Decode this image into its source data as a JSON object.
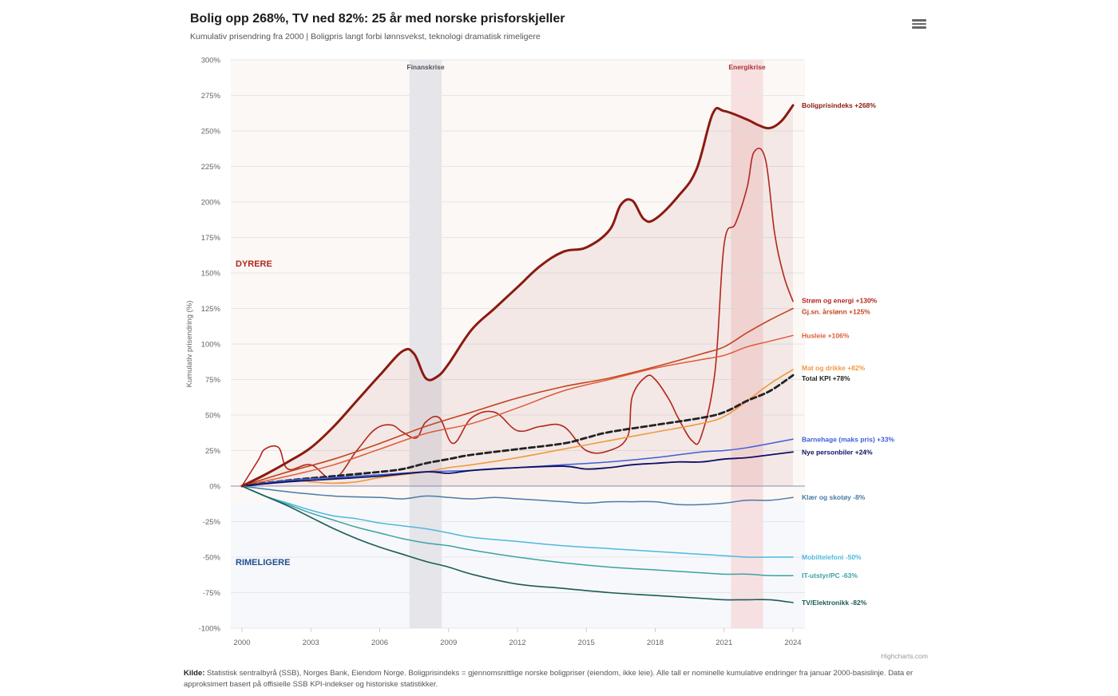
{
  "header": {
    "title": "Bolig opp 268%, TV ned 82%: 25 år med norske prisforskjeller",
    "subtitle": "Kumulativ prisendring fra 2000 | Boligpris langt forbi lønnsvekst, teknologi dramatisk rimeligere",
    "menu_icon": "hamburger-menu-icon"
  },
  "credits": "Highcharts.com",
  "source": {
    "label": "Kilde:",
    "text": "Statistisk sentralbyrå (SSB), Norges Bank, Eiendom Norge. Boligprisindeks = gjennomsnittlige norske boligpriser (eiendom, ikke leie). Alle tall er nominelle kumulative endringer fra januar 2000-basislinje. Data er approksimert basert på offisielle SSB KPI-indekser og historiske statistikker."
  },
  "chart_data": {
    "type": "line",
    "title": "Bolig opp 268%, TV ned 82%: 25 år med norske prisforskjeller",
    "ylabel": "Kumulativ prisendring (%)",
    "xlabel": "",
    "xlim": [
      2000,
      2024
    ],
    "ylim": [
      -100,
      300
    ],
    "xticks": [
      "2000",
      "2003",
      "2006",
      "2009",
      "2012",
      "2015",
      "2018",
      "2021",
      "2024"
    ],
    "yticks": [
      "300%",
      "275%",
      "250%",
      "225%",
      "200%",
      "175%",
      "150%",
      "125%",
      "100%",
      "75%",
      "50%",
      "25%",
      "0%",
      "-25%",
      "-50%",
      "-75%",
      "-100%"
    ],
    "grid": true,
    "legend": "none",
    "zones": [
      {
        "label": "DYRERE",
        "from": -11,
        "to": 300,
        "color": "#fbf8f6",
        "label_color": "#b0281a"
      },
      {
        "label": "RIMELIGERE",
        "from": -100,
        "to": -11,
        "color": "#f7f8fc",
        "label_color": "#1f4e8c"
      }
    ],
    "plot_bands": [
      {
        "label": "Finanskrise",
        "from": 2007.3,
        "to": 2008.7,
        "color": "#e2e2e6",
        "label_color": "#555555"
      },
      {
        "label": "Energikrise",
        "from": 2021.3,
        "to": 2022.7,
        "color": "#f7dcdc",
        "label_color": "#a83232"
      }
    ],
    "series": [
      {
        "name": "Boligprisindeks",
        "label": "Boligprisindeks +268%",
        "color": "#8b1a10",
        "width": 3,
        "dash": false,
        "area": true,
        "x": [
          2000,
          2001,
          2002,
          2003,
          2004,
          2005,
          2006,
          2007,
          2007.5,
          2008,
          2008.5,
          2009,
          2010,
          2011,
          2012,
          2013,
          2014,
          2015,
          2016,
          2016.5,
          2017,
          2017.5,
          2018,
          2019,
          2019.8,
          2020.5,
          2021,
          2022,
          2022.5,
          2023,
          2023.5,
          2024
        ],
        "y": [
          0,
          8,
          17,
          27,
          42,
          60,
          78,
          95,
          93,
          76,
          77,
          86,
          110,
          125,
          140,
          155,
          165,
          168,
          180,
          198,
          201,
          188,
          188,
          204,
          223,
          262,
          264,
          258,
          254,
          252,
          257,
          268
        ]
      },
      {
        "name": "Strøm og energi",
        "label": "Strøm og energi +130%",
        "color": "#b3261e",
        "width": 1.6,
        "dash": false,
        "area": false,
        "x": [
          2000,
          2000.7,
          2001,
          2001.6,
          2002,
          2003,
          2004,
          2005,
          2005.8,
          2006.5,
          2007,
          2007.6,
          2008,
          2008.6,
          2009.2,
          2010,
          2011,
          2012,
          2013,
          2014,
          2015,
          2016,
          2016.8,
          2017,
          2017.6,
          2018,
          2018.6,
          2019,
          2019.6,
          2020,
          2020.6,
          2021,
          2021.5,
          2022,
          2022.3,
          2022.8,
          2023.2,
          2023.6,
          2024
        ],
        "y": [
          0,
          18,
          26,
          27,
          12,
          15,
          5,
          25,
          40,
          43,
          38,
          34,
          45,
          48,
          30,
          48,
          52,
          39,
          42,
          42,
          25,
          25,
          35,
          63,
          77,
          75,
          61,
          48,
          32,
          35,
          80,
          170,
          185,
          210,
          235,
          230,
          178,
          148,
          130
        ]
      },
      {
        "name": "Gj.sn. årslønn",
        "label": "Gj.sn. årslønn +125%",
        "color": "#c2461e",
        "width": 1.6,
        "dash": false,
        "area": false,
        "x": [
          2000,
          2002,
          2004,
          2006,
          2008,
          2010,
          2012,
          2014,
          2016,
          2018,
          2020,
          2021,
          2022,
          2023,
          2024
        ],
        "y": [
          0,
          10,
          19,
          30,
          42,
          52,
          62,
          70,
          76,
          84,
          93,
          98,
          108,
          117,
          125
        ]
      },
      {
        "name": "Husleie",
        "label": "Husleie +106%",
        "color": "#e05a3a",
        "width": 1.5,
        "dash": false,
        "area": false,
        "x": [
          2000,
          2002,
          2004,
          2006,
          2008,
          2010,
          2012,
          2014,
          2016,
          2018,
          2020,
          2021,
          2022,
          2023,
          2024
        ],
        "y": [
          0,
          7,
          15,
          26,
          37,
          44,
          55,
          67,
          75,
          83,
          89,
          92,
          98,
          102,
          106
        ]
      },
      {
        "name": "Mat og drikke",
        "label": "Mat og drikke +82%",
        "color": "#f09a3e",
        "width": 1.6,
        "dash": false,
        "area": false,
        "x": [
          2000,
          2002,
          2003,
          2004,
          2005,
          2006,
          2007,
          2008,
          2009,
          2010,
          2012,
          2014,
          2016,
          2018,
          2020,
          2021,
          2022,
          2023,
          2024
        ],
        "y": [
          0,
          4,
          3,
          2,
          3,
          6,
          8,
          10,
          13,
          15,
          20,
          26,
          32,
          38,
          44,
          49,
          60,
          72,
          82
        ]
      },
      {
        "name": "Total KPI",
        "label": "Total KPI +78%",
        "color": "#222222",
        "width": 2.8,
        "dash": true,
        "area": false,
        "x": [
          2000,
          2002,
          2004,
          2006,
          2007,
          2008,
          2009,
          2010,
          2012,
          2014,
          2015,
          2016,
          2018,
          2020,
          2021,
          2022,
          2023,
          2024
        ],
        "y": [
          0,
          4,
          7,
          10,
          12,
          16,
          19,
          22,
          26,
          30,
          34,
          38,
          43,
          48,
          52,
          60,
          67,
          78
        ]
      },
      {
        "name": "Barnehage (maks pris)",
        "label": "Barnehage (maks pris) +33%",
        "color": "#3b5fd9",
        "width": 1.5,
        "dash": false,
        "area": false,
        "x": [
          2000,
          2002,
          2004,
          2006,
          2008,
          2010,
          2012,
          2014,
          2016,
          2018,
          2020,
          2021,
          2022,
          2023,
          2024
        ],
        "y": [
          0,
          4,
          6,
          8,
          10,
          11,
          13,
          15,
          17,
          20,
          24,
          25,
          27,
          30,
          33
        ]
      },
      {
        "name": "Nye personbiler",
        "label": "Nye personbiler +24%",
        "color": "#0d1065",
        "width": 1.8,
        "dash": false,
        "area": false,
        "x": [
          2000,
          2002,
          2004,
          2006,
          2008,
          2009,
          2010,
          2012,
          2014,
          2015,
          2016,
          2017,
          2018,
          2019,
          2020,
          2021,
          2022,
          2023,
          2024
        ],
        "y": [
          0,
          3,
          5,
          7,
          10,
          9,
          11,
          13,
          14,
          12,
          13,
          15,
          16,
          17,
          17,
          19,
          20,
          22,
          24
        ]
      },
      {
        "name": "Klær og skotøy",
        "label": "Klær og skotøy -8%",
        "color": "#4a7aa8",
        "width": 1.5,
        "dash": false,
        "area": false,
        "x": [
          2000,
          2002,
          2004,
          2006,
          2007,
          2008,
          2009,
          2010,
          2011,
          2012,
          2013,
          2014,
          2015,
          2016,
          2017,
          2018,
          2019,
          2020,
          2021,
          2022,
          2023,
          2024
        ],
        "y": [
          0,
          -4,
          -7,
          -8,
          -9,
          -7,
          -8,
          -9,
          -8,
          -9,
          -10,
          -11,
          -12,
          -11,
          -11,
          -11,
          -13,
          -13,
          -12,
          -10,
          -10,
          -8
        ]
      },
      {
        "name": "Mobiltelefoni",
        "label": "Mobiltelefoni -50%",
        "color": "#4fb8e0",
        "width": 1.5,
        "dash": false,
        "area": false,
        "x": [
          2000,
          2001,
          2002,
          2003,
          2004,
          2005,
          2006,
          2007,
          2008,
          2009,
          2010,
          2012,
          2014,
          2016,
          2018,
          2020,
          2021,
          2022,
          2023,
          2024
        ],
        "y": [
          0,
          -7,
          -12,
          -17,
          -21,
          -23,
          -26,
          -28,
          -30,
          -33,
          -36,
          -39,
          -42,
          -44,
          -46,
          -48,
          -49,
          -50,
          -50,
          -50
        ]
      },
      {
        "name": "IT-utstyr/PC",
        "label": "IT-utstyr/PC -63%",
        "color": "#3aa3a0",
        "width": 1.5,
        "dash": false,
        "area": false,
        "x": [
          2000,
          2001,
          2002,
          2003,
          2004,
          2005,
          2006,
          2007,
          2008,
          2009,
          2010,
          2012,
          2014,
          2016,
          2018,
          2020,
          2021,
          2022,
          2023,
          2024
        ],
        "y": [
          0,
          -7,
          -13,
          -19,
          -24,
          -29,
          -33,
          -37,
          -40,
          -42,
          -45,
          -50,
          -54,
          -57,
          -59,
          -61,
          -62,
          -62,
          -63,
          -63
        ]
      },
      {
        "name": "TV/Elektronikk",
        "label": "TV/Elektronikk -82%",
        "color": "#1a5c55",
        "width": 1.6,
        "dash": false,
        "area": false,
        "x": [
          2000,
          2001,
          2002,
          2003,
          2004,
          2005,
          2006,
          2007,
          2008,
          2009,
          2010,
          2012,
          2014,
          2016,
          2018,
          2020,
          2021,
          2022,
          2023,
          2024
        ],
        "y": [
          0,
          -7,
          -14,
          -22,
          -30,
          -37,
          -43,
          -48,
          -53,
          -57,
          -62,
          -69,
          -72,
          -75,
          -77,
          -79,
          -80,
          -80,
          -80,
          -82
        ]
      }
    ]
  }
}
